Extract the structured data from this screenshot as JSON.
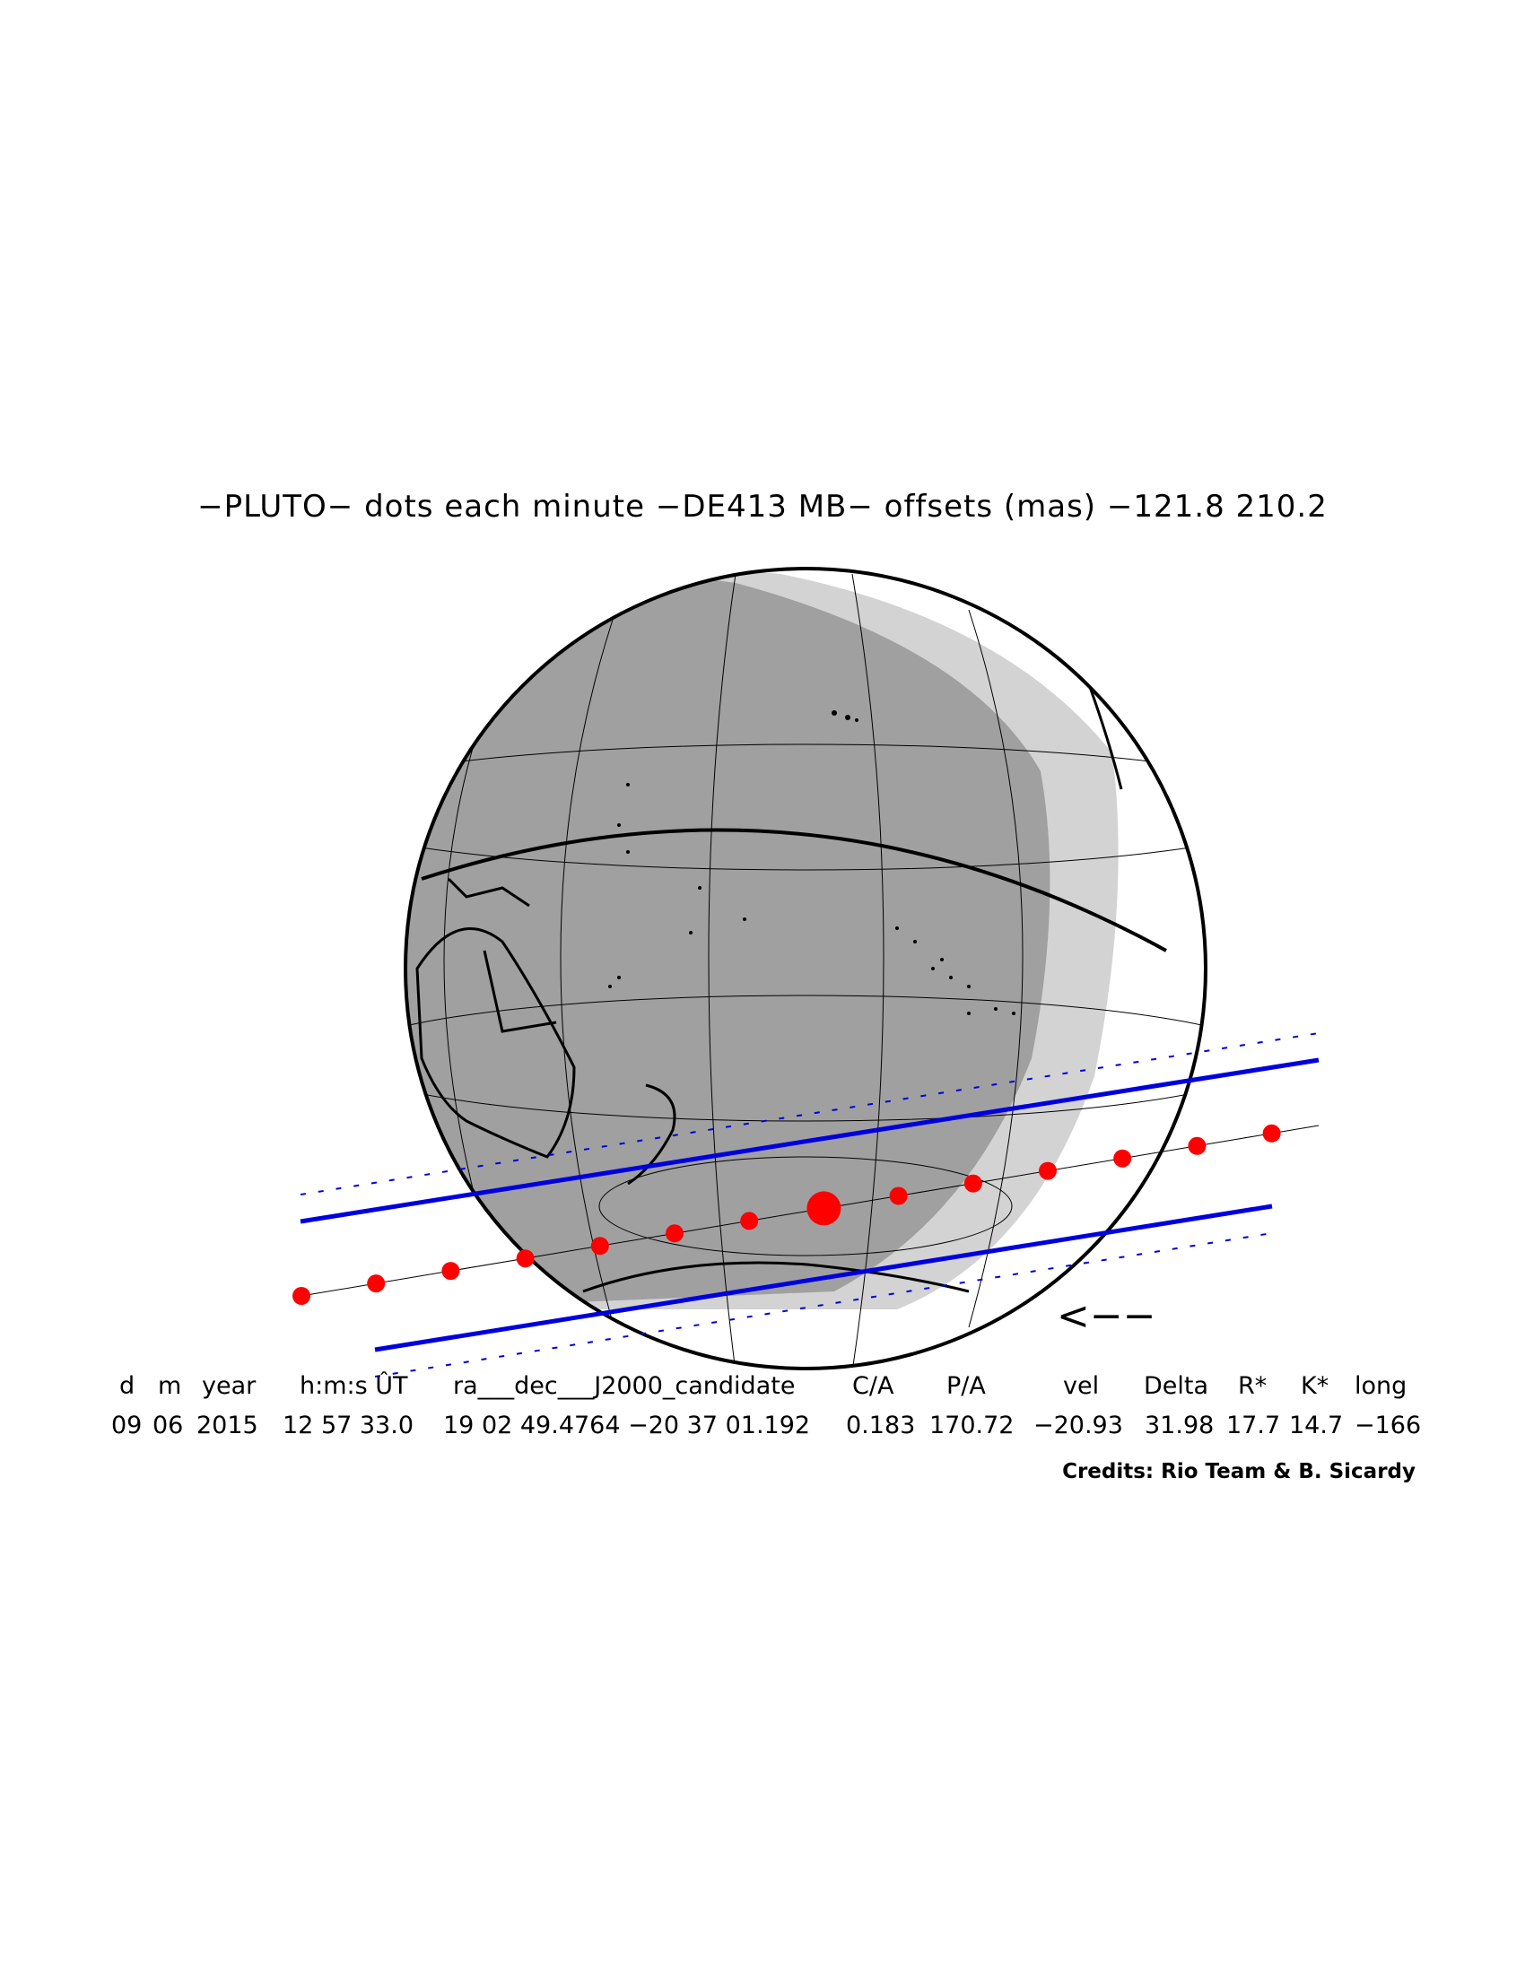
{
  "title": "−PLUTO− dots each minute −DE413 MB− offsets (mas) −121.8  210.2",
  "direction_arrow": "<−−",
  "table": {
    "headers": [
      "d",
      "m",
      "year",
      "h:m:s ÛT",
      "ra___dec___J2000_candidate",
      "C/A",
      "P/A",
      "vel",
      "Delta",
      "R*",
      "K*",
      "long"
    ],
    "values": [
      "09",
      "06",
      "2015",
      "12 57 33.0",
      "19 02 49.4764 −20 37 01.192",
      "0.183",
      "170.72",
      "−20.93",
      "31.98",
      "17.7",
      "14.7",
      "−166"
    ]
  },
  "credits": "Credits: Rio Team & B. Sicardy",
  "colors": {
    "path_dots": "#ff0000",
    "shadow_limits": "#0000dd",
    "night": "#a0a0a0",
    "twilight": "#d3d3d3"
  }
}
